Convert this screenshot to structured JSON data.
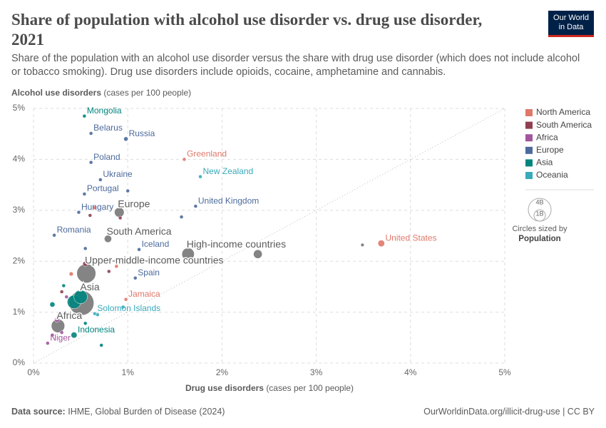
{
  "chart_data": {
    "type": "scatter",
    "title": "Share of population with alcohol use disorder vs. drug use disorder, 2021",
    "subtitle": "Share of the population with an alcohol use disorder versus the share with drug use disorder (which does not include alcohol or tobacco smoking). Drug use disorders include opioids, cocaine, amphetamine and cannabis.",
    "logo": [
      "Our World",
      "in Data"
    ],
    "ylabel": "Alcohol use disorders",
    "ylabel_unit": "(cases per 100 people)",
    "xlabel": "Drug use disorders",
    "xlabel_unit": "(cases per 100 people)",
    "source_label": "Data source:",
    "source": "IHME, Global Burden of Disease (2024)",
    "credit": "OurWorldinData.org/illicit-drug-use | CC BY",
    "xlim": [
      0,
      5
    ],
    "ylim": [
      0,
      5
    ],
    "xticks": [
      {
        "value": 0,
        "label": "0%"
      },
      {
        "value": 1,
        "label": "1%"
      },
      {
        "value": 2,
        "label": "2%"
      },
      {
        "value": 3,
        "label": "3%"
      },
      {
        "value": 4,
        "label": "4%"
      },
      {
        "value": 5,
        "label": "5%"
      }
    ],
    "yticks": [
      {
        "value": 0,
        "label": "0%"
      },
      {
        "value": 1,
        "label": "1%"
      },
      {
        "value": 2,
        "label": "2%"
      },
      {
        "value": 3,
        "label": "3%"
      },
      {
        "value": 4,
        "label": "4%"
      },
      {
        "value": 5,
        "label": "5%"
      }
    ],
    "grid": true,
    "diagonal": true,
    "size_legend": {
      "title": "Circles sized by",
      "title_bold": "Population",
      "sizes": [
        {
          "value": 4,
          "label": "4B"
        },
        {
          "value": 1,
          "label": "1B"
        }
      ]
    },
    "aggregates": {
      "color": "#6e6e6e",
      "labels": [
        "Europe",
        "South America",
        "High-income countries",
        "Upper-middle-income countries",
        "Asia",
        "Africa",
        null,
        null
      ],
      "x": [
        0.91,
        0.79,
        1.64,
        0.56,
        0.51,
        0.26,
        2.38,
        3.49
      ],
      "values": [
        2.96,
        2.44,
        2.14,
        1.76,
        1.18,
        0.73,
        2.14,
        2.32
      ],
      "sizes": [
        0.74,
        0.43,
        1.2,
        2.8,
        4.7,
        1.4,
        0.6,
        0.05
      ]
    },
    "series": [
      {
        "name": "North America",
        "color": "#e0786a",
        "labels": [
          "Greenland",
          "United States",
          "Jamaica",
          null,
          null,
          null
        ],
        "x": [
          1.6,
          3.69,
          0.98,
          0.65,
          0.4,
          0.88
        ],
        "values": [
          4.0,
          2.35,
          1.25,
          3.05,
          1.75,
          1.9
        ],
        "sizes": [
          6e-05,
          0.34,
          0.003,
          0.04,
          0.13,
          0.01
        ]
      },
      {
        "name": "South America",
        "color": "#8f3f50",
        "labels": [
          null,
          null,
          null,
          null,
          null
        ],
        "x": [
          0.92,
          0.55,
          0.6,
          0.8,
          0.3
        ],
        "values": [
          2.85,
          1.95,
          2.9,
          1.8,
          1.4
        ],
        "sizes": [
          0.03,
          0.2,
          0.05,
          0.02,
          0.01
        ]
      },
      {
        "name": "Africa",
        "color": "#a2559c",
        "labels": [
          "Niger",
          null,
          null,
          null,
          null,
          null
        ],
        "x": [
          0.15,
          0.25,
          0.3,
          0.42,
          0.2,
          0.35
        ],
        "values": [
          0.39,
          0.85,
          0.6,
          1.1,
          0.55,
          1.3
        ],
        "sizes": [
          0.027,
          0.2,
          0.05,
          0.1,
          0.03,
          0.02
        ]
      },
      {
        "name": "Europe",
        "color": "#4c6a9c",
        "labels": [
          "Belarus",
          "Russia",
          "Poland",
          "Ukraine",
          "Portugal",
          "Hungary",
          "Romania",
          "Iceland",
          "Spain",
          "United Kingdom",
          null,
          null,
          null,
          null
        ],
        "x": [
          0.61,
          0.98,
          0.61,
          0.71,
          0.54,
          0.48,
          0.22,
          1.12,
          1.08,
          1.72,
          1.0,
          1.57,
          0.95,
          0.55
        ],
        "values": [
          4.51,
          4.4,
          3.94,
          3.6,
          3.32,
          2.96,
          2.51,
          2.23,
          1.67,
          3.08,
          3.38,
          2.87,
          2.6,
          2.25
        ],
        "sizes": [
          0.009,
          0.144,
          0.038,
          0.04,
          0.01,
          0.0097,
          0.019,
          0.0004,
          0.047,
          0.067,
          0.01,
          0.08,
          0.06,
          0.01
        ]
      },
      {
        "name": "Asia",
        "color": "#00847e",
        "labels": [
          "Mongolia",
          "Indonesia",
          null,
          null,
          null,
          null,
          null,
          null
        ],
        "x": [
          0.54,
          0.43,
          0.43,
          0.5,
          0.2,
          0.32,
          0.72,
          0.55
        ],
        "values": [
          4.85,
          0.55,
          1.2,
          1.3,
          1.15,
          1.52,
          0.35,
          0.78
        ],
        "sizes": [
          0.0034,
          0.275,
          1.4,
          1.4,
          0.2,
          0.05,
          0.02,
          0.01
        ]
      },
      {
        "name": "Oceania",
        "color": "#38aaba",
        "labels": [
          "New Zealand",
          "Solomon Islands",
          null,
          null
        ],
        "x": [
          1.77,
          0.65,
          0.68,
          0.95
        ],
        "values": [
          3.66,
          0.97,
          0.95,
          1.1
        ],
        "sizes": [
          0.005,
          0.0007,
          0.026,
          0.01
        ]
      }
    ]
  }
}
